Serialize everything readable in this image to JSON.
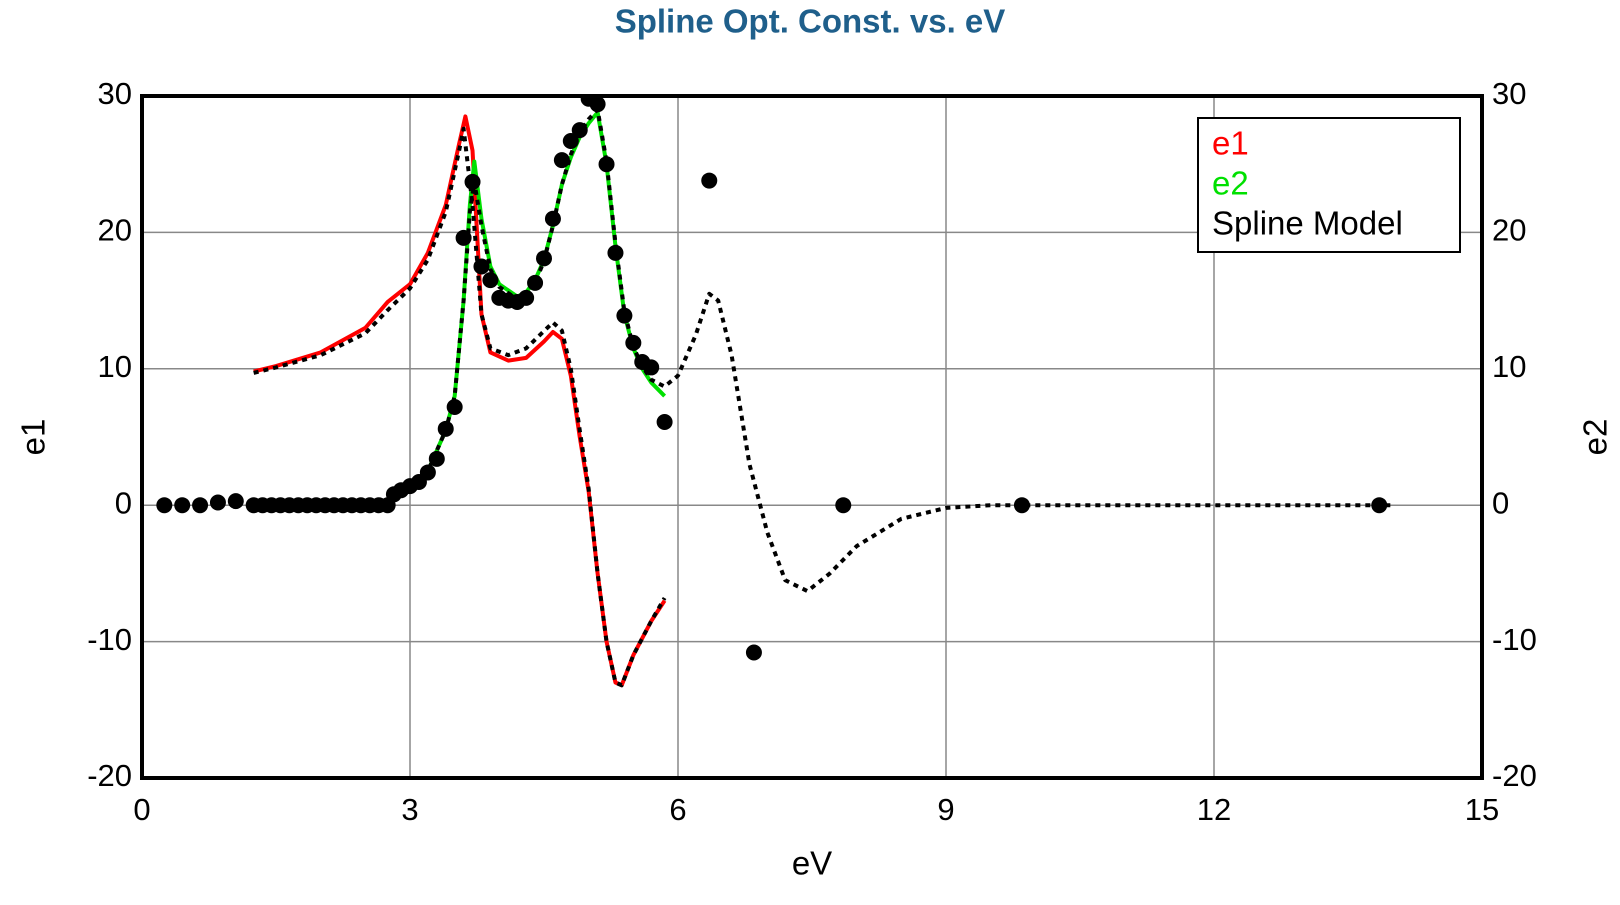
{
  "chart_data": {
    "type": "line",
    "title": "Spline Opt. Const. vs. eV",
    "x_label": "eV",
    "y_label": "e1",
    "y2_label": "e2",
    "xlim": [
      0,
      15
    ],
    "xticks": [
      0,
      3,
      6,
      9,
      12,
      15
    ],
    "ylim": [
      -20,
      30
    ],
    "yticks": [
      -20,
      -10,
      0,
      10,
      20,
      30
    ],
    "y2lim": [
      -20,
      30
    ],
    "y2ticks": [
      -20,
      -10,
      0,
      10,
      20,
      30
    ],
    "grid": true,
    "legend": "upper right",
    "series": [
      {
        "name": "e1",
        "color": "#ff0000",
        "style": "solid",
        "axis": "y",
        "x": [
          1.25,
          1.5,
          2.0,
          2.5,
          2.75,
          3.0,
          3.2,
          3.4,
          3.55,
          3.62,
          3.7,
          3.75,
          3.8,
          3.9,
          4.1,
          4.3,
          4.5,
          4.6,
          4.7,
          4.8,
          4.9,
          5.0,
          5.1,
          5.2,
          5.3,
          5.37,
          5.5,
          5.7,
          5.85
        ],
        "values": [
          9.8,
          10.2,
          11.2,
          13.0,
          14.9,
          16.2,
          18.5,
          22,
          26.5,
          28.5,
          26,
          20,
          14,
          11.2,
          10.6,
          10.8,
          12.0,
          12.7,
          12.2,
          9.5,
          5,
          1,
          -5,
          -10,
          -13,
          -13.2,
          -11,
          -8.5,
          -7
        ]
      },
      {
        "name": "e2",
        "color": "#00e000",
        "style": "solid",
        "axis": "y2",
        "x": [
          2.8,
          3.0,
          3.2,
          3.4,
          3.5,
          3.6,
          3.67,
          3.72,
          3.8,
          3.9,
          4.0,
          4.2,
          4.3,
          4.4,
          4.5,
          4.6,
          4.7,
          4.8,
          4.9,
          5.0,
          5.1,
          5.2,
          5.3,
          5.4,
          5.5,
          5.6,
          5.7,
          5.85
        ],
        "values": [
          0.3,
          1.2,
          2.5,
          5.5,
          8,
          15,
          22,
          25.2,
          21,
          17.5,
          16.2,
          15.3,
          15.6,
          16.5,
          18,
          20.5,
          23.5,
          25.5,
          27,
          28,
          28.8,
          25,
          19,
          14,
          11.5,
          10,
          9,
          8
        ]
      },
      {
        "name": "Spline Model",
        "color": "#000000",
        "style": "dotted",
        "axis": "y2",
        "x": [
          2.8,
          3.0,
          3.2,
          3.4,
          3.5,
          3.6,
          3.67,
          3.72,
          3.8,
          3.9,
          4.0,
          4.2,
          4.3,
          4.4,
          4.5,
          4.6,
          4.7,
          4.8,
          4.9,
          5.0,
          5.1,
          5.2,
          5.3,
          5.4,
          5.5,
          5.6,
          5.7,
          5.85,
          6.0,
          6.2,
          6.35,
          6.45,
          6.6,
          6.8,
          7.0,
          7.2,
          7.45,
          7.7,
          8.0,
          8.5,
          9.0,
          9.5,
          14
        ],
        "values": [
          0.3,
          1.2,
          2.5,
          5.5,
          8,
          15,
          21.5,
          23.7,
          20.5,
          17.3,
          16,
          15.1,
          15.4,
          16.3,
          17.9,
          20.5,
          23.5,
          25.7,
          27.3,
          28.3,
          29,
          25.2,
          19.2,
          14.2,
          11.6,
          10.2,
          9.2,
          8.7,
          9.5,
          12.5,
          15.5,
          15,
          11,
          3,
          -2,
          -5.5,
          -6.3,
          -5,
          -3,
          -1,
          -0.2,
          0,
          0
        ]
      },
      {
        "color": "#000000",
        "style": "dotted",
        "axis": "y",
        "x": [
          1.25,
          1.5,
          2.0,
          2.5,
          2.75,
          3.0,
          3.2,
          3.4,
          3.55,
          3.6,
          3.7,
          3.8,
          3.9,
          4.1,
          4.3,
          4.6,
          4.7,
          4.8,
          4.9,
          5.0,
          5.1,
          5.2,
          5.3,
          5.37,
          5.5,
          5.7,
          5.85
        ],
        "values": [
          9.7,
          10.1,
          11.0,
          12.6,
          14.3,
          15.9,
          18.0,
          21.5,
          26.0,
          27.6,
          22,
          14,
          11.5,
          11,
          11.5,
          13.4,
          12.8,
          10,
          5.5,
          1.2,
          -5,
          -10,
          -13,
          -13.2,
          -11,
          -8.5,
          -6.8
        ]
      },
      {
        "color": "#000000",
        "style": "markers",
        "axis": "y2",
        "x": [
          0.25,
          0.45,
          0.65,
          0.85,
          1.05,
          1.25,
          1.35,
          1.45,
          1.55,
          1.65,
          1.75,
          1.85,
          1.95,
          2.05,
          2.15,
          2.25,
          2.35,
          2.45,
          2.55,
          2.65,
          2.75,
          2.82,
          2.9,
          3.0,
          3.1,
          3.2,
          3.3,
          3.4,
          3.5,
          3.6,
          3.7,
          3.8,
          3.9,
          4.0,
          4.1,
          4.2,
          4.3,
          4.4,
          4.5,
          4.6,
          4.7,
          4.8,
          4.9,
          5.0,
          5.1,
          5.2,
          5.3,
          5.4,
          5.5,
          5.6,
          5.7,
          5.85,
          6.35,
          6.85,
          7.85,
          9.85,
          13.85
        ],
        "values": [
          0,
          0,
          0,
          0.2,
          0.3,
          0,
          0,
          0,
          0,
          0,
          0,
          0,
          0,
          0,
          0,
          0,
          0,
          0,
          0,
          0,
          0,
          0.8,
          1.1,
          1.4,
          1.7,
          2.4,
          3.4,
          5.6,
          7.2,
          19.6,
          23.7,
          17.5,
          16.5,
          15.2,
          15,
          14.9,
          15.2,
          16.3,
          18.1,
          21,
          25.3,
          26.7,
          27.5,
          29.8,
          29.4,
          25,
          18.5,
          13.9,
          11.9,
          10.5,
          10.1,
          6.1,
          23.8,
          -10.8,
          0,
          0,
          0
        ]
      }
    ]
  }
}
